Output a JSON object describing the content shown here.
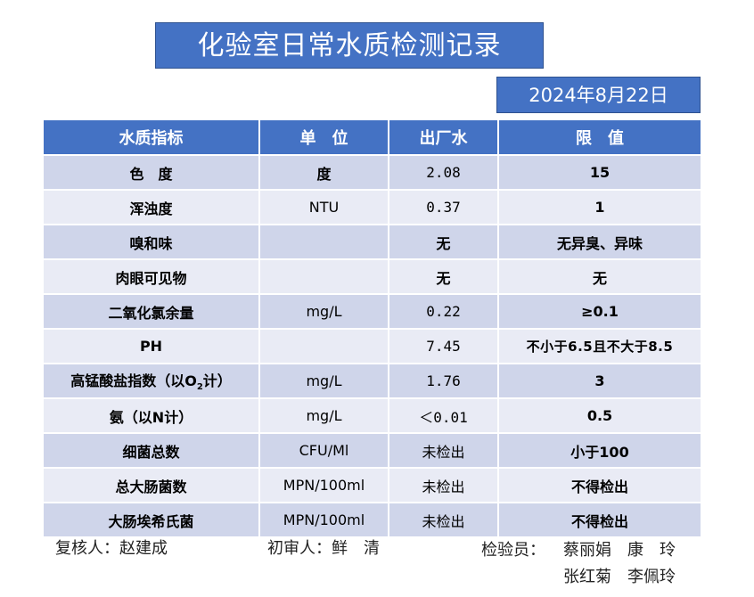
{
  "title": "化验室日常水质检测记录",
  "date": "2024年8月22日",
  "table": {
    "headers": [
      "水质指标",
      "单　位",
      "出厂水",
      "限　值"
    ],
    "rows": [
      {
        "indicator": "色　度",
        "unit": "度",
        "value": "2.08",
        "limit": "15"
      },
      {
        "indicator": "浑浊度",
        "unit": "NTU",
        "value": "0.37",
        "limit": "1"
      },
      {
        "indicator": "嗅和味",
        "unit": "",
        "value": "无",
        "limit": "无异臭、异味"
      },
      {
        "indicator": "肉眼可见物",
        "unit": "",
        "value": "无",
        "limit": "无"
      },
      {
        "indicator": "二氧化氯余量",
        "unit": "mg/L",
        "value": "0.22",
        "limit": "≥0.1"
      },
      {
        "indicator": "PH",
        "unit": "",
        "value": "7.45",
        "limit": "不小于6.5且不大于8.5"
      },
      {
        "indicator_pre": "高锰酸盐指数（以O",
        "indicator_sub": "2",
        "indicator_post": "计）",
        "unit": "mg/L",
        "value": "1.76",
        "limit": "3"
      },
      {
        "indicator": "氨（以N计）",
        "unit": "mg/L",
        "value": "＜0.01",
        "limit": "0.5"
      },
      {
        "indicator": "细菌总数",
        "unit": "CFU/Ml",
        "value": "未检出",
        "limit": "小于100"
      },
      {
        "indicator": "总大肠菌数",
        "unit": "MPN/100ml",
        "value": "未检出",
        "limit": "不得检出"
      },
      {
        "indicator": "大肠埃希氏菌",
        "unit": "MPN/100ml",
        "value": "未检出",
        "limit": "不得检出"
      }
    ]
  },
  "footer": {
    "reviewer": "复核人：赵建成",
    "checker": "初审人：鲜　清",
    "inspector_label": "检验员：",
    "inspectors_line1": "蔡丽娟　康　玲",
    "inspectors_line2": "张红菊　李佩玲"
  },
  "colors": {
    "header_blue": "#4472c4",
    "row_dark": "#cfd5ea",
    "row_light": "#e9ebf5"
  }
}
